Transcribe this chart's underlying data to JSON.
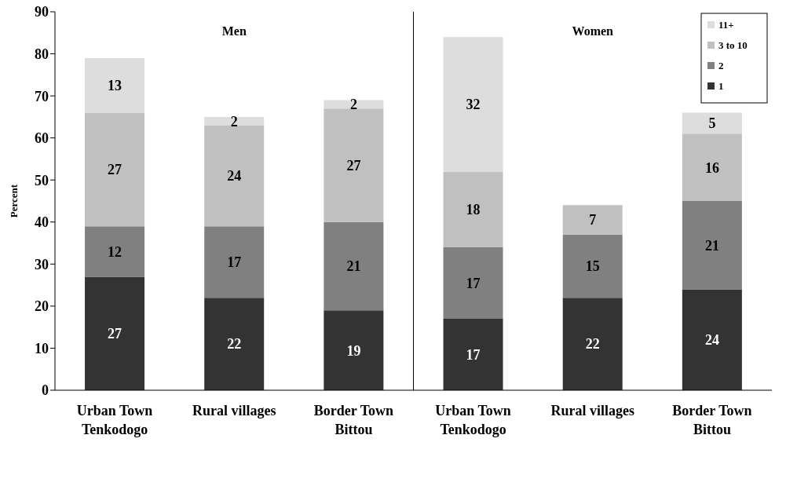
{
  "chart_data": {
    "type": "bar",
    "stacked": true,
    "ylabel": "Percent",
    "categories": [
      "Urban Town\nTenkodogo",
      "Rural villages",
      "Border Town\nBittou",
      "Urban Town\nTenkodogo",
      "Rural villages",
      "Border Town\nBittou"
    ],
    "series": [
      {
        "name": "1",
        "color": "#333333",
        "values": [
          27,
          22,
          19,
          17,
          22,
          24
        ]
      },
      {
        "name": "2",
        "color": "#808080",
        "values": [
          12,
          17,
          21,
          17,
          15,
          21
        ]
      },
      {
        "name": "3 to 10",
        "color": "#c0c0c0",
        "values": [
          27,
          24,
          27,
          18,
          7,
          16
        ]
      },
      {
        "name": "11+",
        "color": "#dddddd",
        "values": [
          13,
          2,
          2,
          32,
          null,
          5
        ]
      }
    ],
    "ylim": [
      0,
      90
    ],
    "yticks": [
      0,
      10,
      20,
      30,
      40,
      50,
      60,
      70,
      80,
      90
    ],
    "annotations": [
      "Men",
      "Women"
    ],
    "data_labels": true,
    "legend": "top right",
    "grid": false
  }
}
